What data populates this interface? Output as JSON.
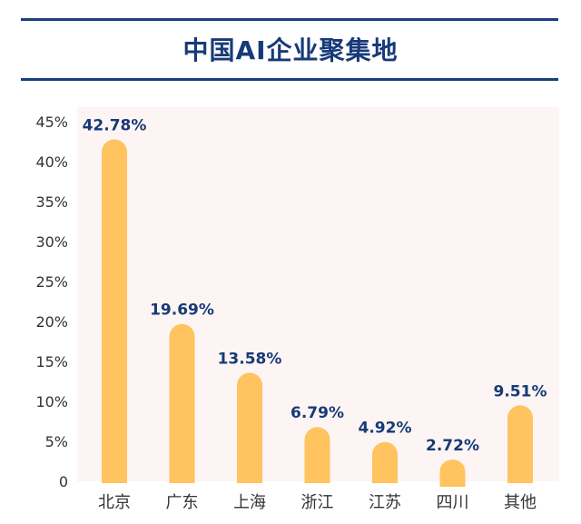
{
  "title": "中国AI企业聚集地",
  "chart_data": {
    "type": "bar",
    "title": "中国AI企业聚集地",
    "categories": [
      "北京",
      "广东",
      "上海",
      "浙江",
      "江苏",
      "四川",
      "其他"
    ],
    "values": [
      42.78,
      19.69,
      13.58,
      6.79,
      4.92,
      2.72,
      9.51
    ],
    "data_labels": [
      "42.78%",
      "19.69%",
      "13.58%",
      "6.79%",
      "4.92%",
      "2.72%",
      "9.51%"
    ],
    "y_ticks": [
      0,
      5,
      10,
      15,
      20,
      25,
      30,
      35,
      40,
      45
    ],
    "y_tick_labels": [
      "0",
      "5%",
      "10%",
      "15%",
      "20%",
      "25%",
      "30%",
      "35%",
      "40%",
      "45%"
    ],
    "ylim": [
      0,
      45
    ],
    "xlabel": "",
    "ylabel": "",
    "grid": false,
    "legend": "none",
    "colors": {
      "bar": "#ffc35f",
      "label": "#173a78",
      "tick": "#333333",
      "rule": "#1a3f7c",
      "background_map": "#fdf5f3"
    }
  }
}
